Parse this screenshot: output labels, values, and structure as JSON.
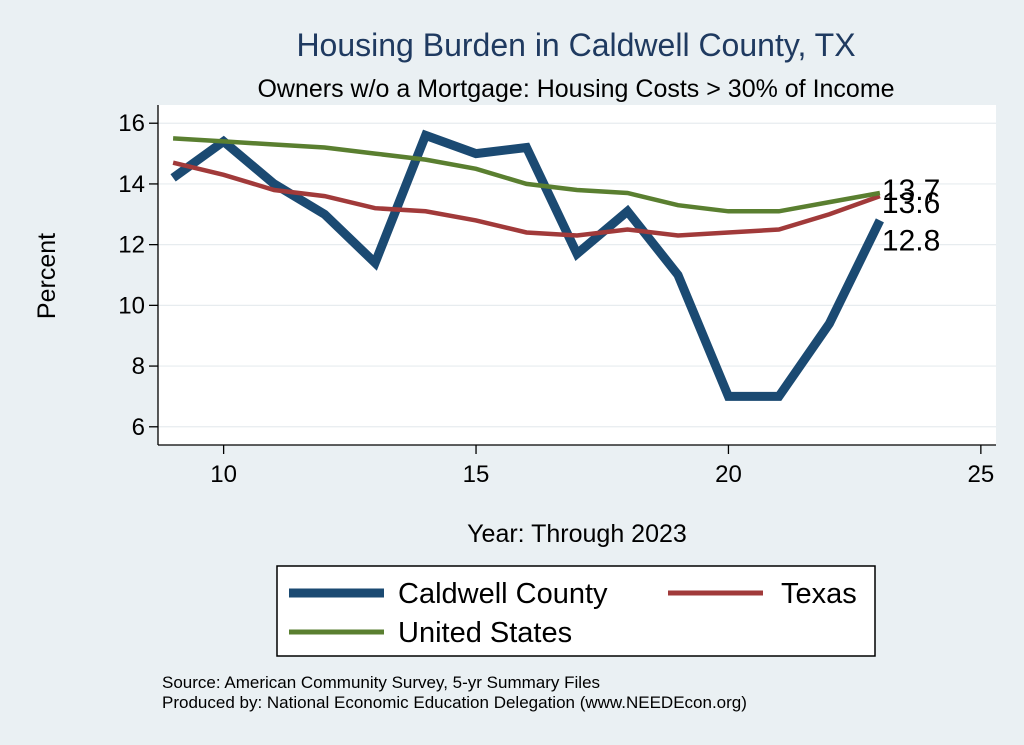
{
  "chart_data": {
    "type": "line",
    "title": "Housing Burden in Caldwell County, TX",
    "subtitle": "Owners w/o a Mortgage: Housing Costs > 30% of Income",
    "xlabel": "Year: Through 2023",
    "ylabel": "Percent",
    "xlim": [
      8.7,
      25.3
    ],
    "ylim": [
      5.4,
      16.6
    ],
    "xticks": [
      10,
      15,
      20,
      25
    ],
    "yticks": [
      6,
      8,
      10,
      12,
      14,
      16
    ],
    "grid": true,
    "legend_position": "bottom",
    "series": [
      {
        "name": "Caldwell County",
        "color": "#1b4a72",
        "x": [
          9,
          10,
          11,
          12,
          13,
          14,
          15,
          16,
          17,
          18,
          19,
          20,
          21,
          22,
          23
        ],
        "values": [
          14.2,
          15.4,
          14.0,
          13.0,
          11.4,
          15.6,
          15.0,
          15.2,
          11.7,
          13.1,
          11.0,
          7.0,
          7.0,
          9.4,
          12.8
        ],
        "end_label": "12.8"
      },
      {
        "name": "Texas",
        "color": "#a13a3a",
        "x": [
          9,
          10,
          11,
          12,
          13,
          14,
          15,
          16,
          17,
          18,
          19,
          20,
          21,
          22,
          23
        ],
        "values": [
          14.7,
          14.3,
          13.8,
          13.6,
          13.2,
          13.1,
          12.8,
          12.4,
          12.3,
          12.5,
          12.3,
          12.4,
          12.5,
          13.0,
          13.6
        ],
        "end_label": "13.6"
      },
      {
        "name": "United States",
        "color": "#5a7f30",
        "x": [
          9,
          10,
          11,
          12,
          13,
          14,
          15,
          16,
          17,
          18,
          19,
          20,
          21,
          22,
          23
        ],
        "values": [
          15.5,
          15.4,
          15.3,
          15.2,
          15.0,
          14.8,
          14.5,
          14.0,
          13.8,
          13.7,
          13.3,
          13.1,
          13.1,
          13.4,
          13.7
        ],
        "end_label": "13.7"
      }
    ]
  },
  "legend": {
    "items": [
      "Caldwell County",
      "Texas",
      "United States"
    ]
  },
  "source": {
    "line1": "Source: American Community Survey, 5-yr Summary Files",
    "line2": "Produced by: National Economic Education Delegation (www.NEEDEcon.org)"
  }
}
